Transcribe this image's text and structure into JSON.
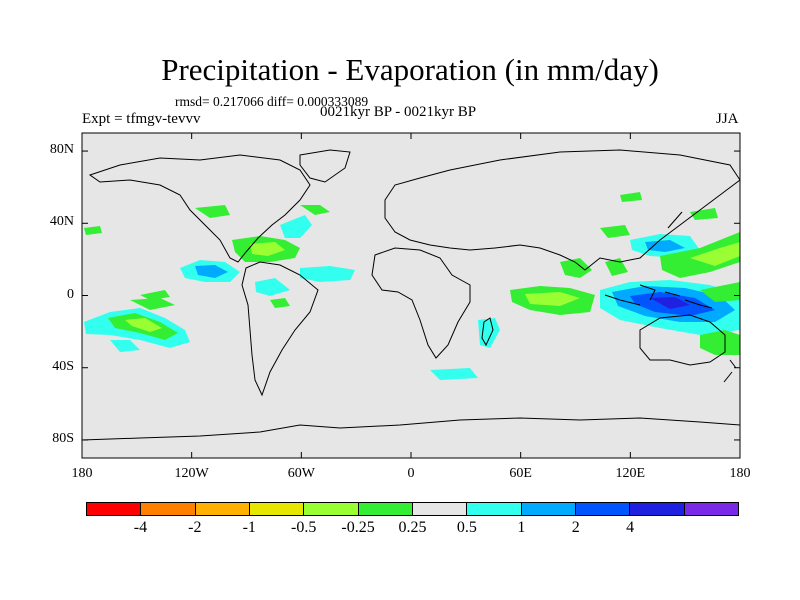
{
  "title": "Precipitation - Evaporation (in mm/day)",
  "stats": "rmsd= 0.217066  diff= 0.000333089",
  "experiment": "Expt = tfmgv-tevvv",
  "period": "0021kyr BP - 0021kyr BP",
  "season": "JJA",
  "map": {
    "lon_range": [
      -180,
      180
    ],
    "lat_range": [
      -90,
      90
    ],
    "background_color": "#e6e6e6",
    "coastline_color": "#000000",
    "y_ticks": [
      {
        "label": "80N",
        "lat": 80
      },
      {
        "label": "40N",
        "lat": 40
      },
      {
        "label": "0",
        "lat": 0
      },
      {
        "label": "40S",
        "lat": -40
      },
      {
        "label": "80S",
        "lat": -80
      }
    ],
    "x_ticks": [
      {
        "label": "180",
        "lon": -180
      },
      {
        "label": "120W",
        "lon": -120
      },
      {
        "label": "60W",
        "lon": -60
      },
      {
        "label": "0",
        "lon": 0
      },
      {
        "label": "60E",
        "lon": 60
      },
      {
        "label": "120E",
        "lon": 120
      },
      {
        "label": "180",
        "lon": 180
      }
    ]
  },
  "colorbar": {
    "colors": [
      "#ff0000",
      "#ff8000",
      "#ffb000",
      "#e6e600",
      "#99ff33",
      "#33ee33",
      "#e6e6e6",
      "#33ffee",
      "#00aaff",
      "#0055ff",
      "#2020e0",
      "#7a2ae6"
    ],
    "labels": [
      "-4",
      "-2",
      "-1",
      "-0.5",
      "-0.25",
      "0.25",
      "0.5",
      "1",
      "2",
      "4"
    ]
  }
}
